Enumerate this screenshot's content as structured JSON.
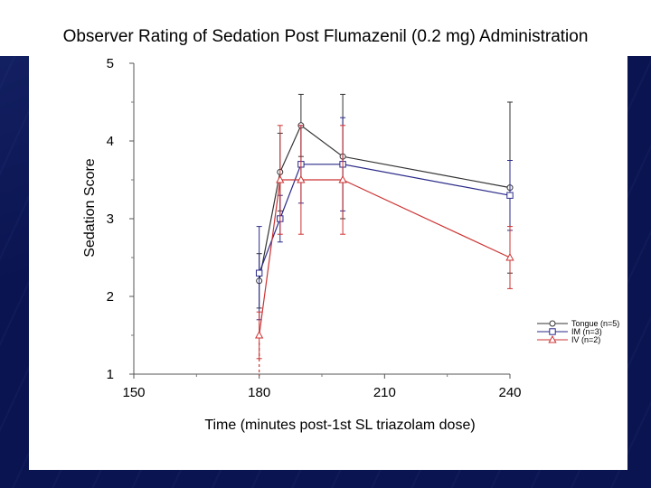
{
  "slide": {
    "title": "Observer Rating of Sedation Post Flumazenil (0.2 mg) Administration"
  },
  "chart_data": {
    "type": "line",
    "title": "Observer Rating of Sedation Post Flumazenil (0.2 mg) Administration",
    "xlabel": "Time (minutes post-1st SL triazolam dose)",
    "ylabel": "Sedation Score",
    "xlim": [
      150,
      240
    ],
    "ylim": [
      1,
      5
    ],
    "xticks": [
      150,
      180,
      210,
      240
    ],
    "yticks": [
      1,
      2,
      3,
      4,
      5
    ],
    "reference_line": {
      "x": 180,
      "style": "dashed",
      "color": "#cc3333"
    },
    "legend_position": "right",
    "series": [
      {
        "name": "Tongue (n=5)",
        "color": "#333333",
        "marker": "circle",
        "x": [
          180,
          185,
          190,
          200,
          240
        ],
        "y": [
          2.2,
          3.6,
          4.2,
          3.8,
          3.4
        ],
        "err": [
          0.35,
          0.5,
          0.4,
          0.8,
          1.1
        ]
      },
      {
        "name": "IM (n=3)",
        "color": "#2a2a8a",
        "marker": "square",
        "x": [
          180,
          185,
          190,
          200,
          240
        ],
        "y": [
          2.3,
          3.0,
          3.7,
          3.7,
          3.3
        ],
        "err": [
          0.6,
          0.3,
          0.5,
          0.6,
          0.45
        ]
      },
      {
        "name": "IV (n=2)",
        "color": "#cc3333",
        "marker": "triangle",
        "x": [
          180,
          185,
          190,
          200,
          240
        ],
        "y": [
          1.5,
          3.5,
          3.5,
          3.5,
          2.5
        ],
        "err": [
          0.3,
          0.7,
          0.7,
          0.7,
          0.4
        ]
      }
    ]
  }
}
